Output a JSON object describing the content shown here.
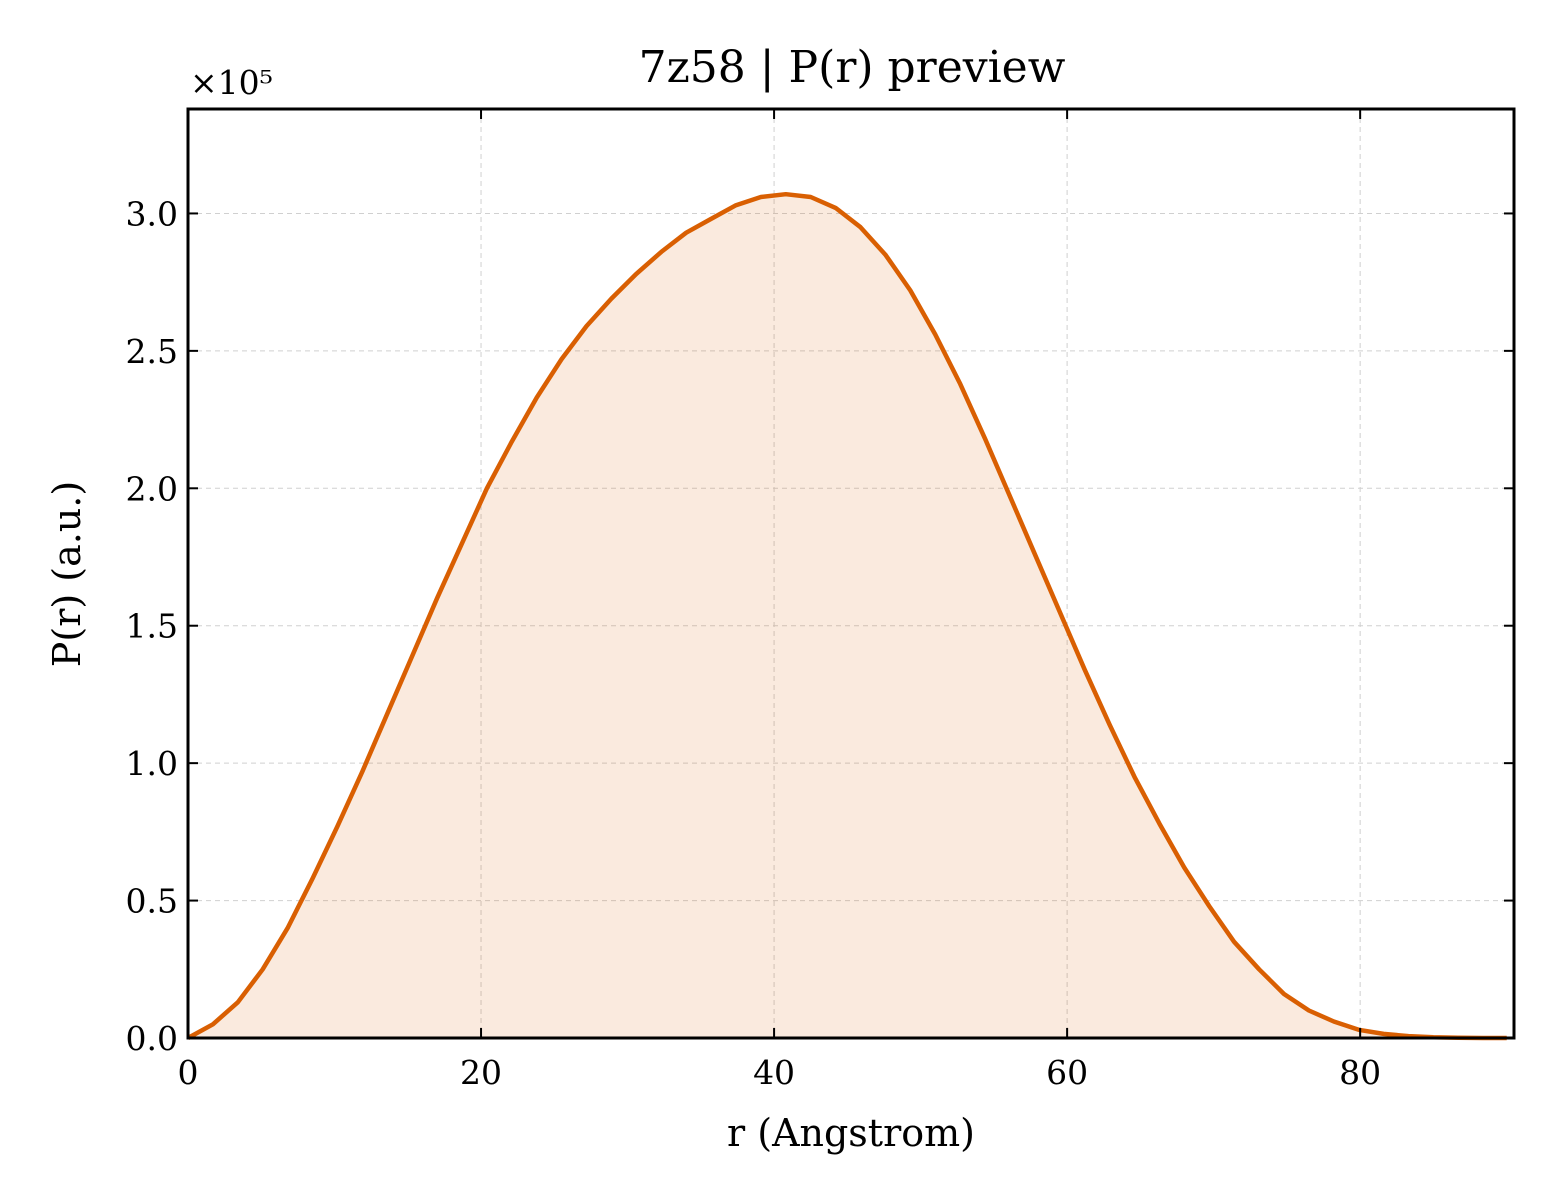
{
  "chart_data": {
    "type": "area",
    "title": "7z58 | P(r) preview",
    "xlabel": "r (Angstrom)",
    "ylabel": "P(r) (a.u.)",
    "y_multiplier_label": "×10⁵",
    "xlim": [
      0,
      90.5
    ],
    "ylim": [
      0,
      3.38
    ],
    "xticks": [
      0,
      20,
      40,
      60,
      80
    ],
    "xtick_labels": [
      "0",
      "20",
      "40",
      "60",
      "80"
    ],
    "yticks": [
      0.0,
      0.5,
      1.0,
      1.5,
      2.0,
      2.5,
      3.0
    ],
    "ytick_labels": [
      "0.0",
      "0.5",
      "1.0",
      "1.5",
      "2.0",
      "2.5",
      "3.0"
    ],
    "grid": true,
    "colors": {
      "line": "#d95f02",
      "fill": "#d95f02"
    },
    "series": [
      {
        "x": [
          0,
          1.7,
          3.4,
          5.1,
          6.8,
          8.5,
          10.2,
          11.9,
          13.6,
          15.3,
          17.0,
          18.7,
          20.4,
          22.1,
          23.8,
          25.5,
          27.2,
          28.9,
          30.6,
          32.3,
          34.0,
          35.7,
          37.4,
          39.1,
          40.8,
          42.5,
          44.2,
          45.9,
          47.6,
          49.3,
          51.0,
          52.7,
          54.4,
          56.1,
          57.8,
          59.5,
          61.2,
          62.9,
          64.6,
          66.3,
          68.0,
          69.7,
          71.4,
          73.1,
          74.8,
          76.5,
          78.2,
          79.9,
          81.6,
          83.3,
          85.0,
          86.7,
          88.4,
          90.0
        ],
        "y": [
          0.0,
          0.05,
          0.13,
          0.25,
          0.4,
          0.58,
          0.77,
          0.97,
          1.18,
          1.39,
          1.6,
          1.8,
          2.0,
          2.17,
          2.33,
          2.47,
          2.59,
          2.69,
          2.78,
          2.86,
          2.93,
          2.98,
          3.03,
          3.06,
          3.07,
          3.06,
          3.02,
          2.95,
          2.85,
          2.72,
          2.56,
          2.38,
          2.18,
          1.97,
          1.76,
          1.55,
          1.34,
          1.14,
          0.95,
          0.78,
          0.62,
          0.48,
          0.35,
          0.25,
          0.16,
          0.1,
          0.06,
          0.03,
          0.015,
          0.007,
          0.003,
          0.001,
          0.0,
          0.0
        ]
      }
    ]
  }
}
